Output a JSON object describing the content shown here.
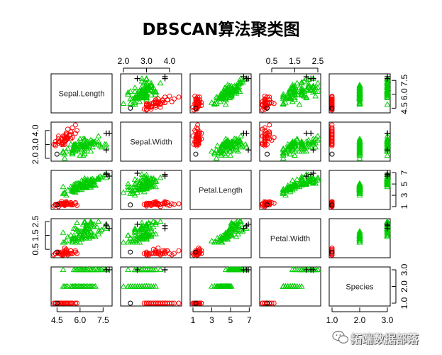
{
  "chart_data": {
    "type": "scatter",
    "title": "DBSCAN算法聚类图",
    "variables": [
      "Sepal.Length",
      "Sepal.Width",
      "Petal.Length",
      "Petal.Width",
      "Species"
    ],
    "ranges": [
      [
        4.3,
        7.9
      ],
      [
        2.0,
        4.4
      ],
      [
        1.0,
        6.9
      ],
      [
        0.1,
        2.5
      ],
      [
        1.0,
        3.0
      ]
    ],
    "ticks": [
      [
        "4.5",
        "6.0",
        "7.5"
      ],
      [
        "2.0",
        "3.0",
        "4.0"
      ],
      [
        "1",
        "3",
        "5",
        "7"
      ],
      [
        "0.5",
        "1.5",
        "2.5"
      ],
      [
        "1.0",
        "2.0",
        "3.0"
      ]
    ],
    "cluster_colors": {
      "noise": "#000000",
      "cluster1": "#ff0000",
      "cluster2": "#00cd00"
    },
    "points": {
      "cluster1": [
        [
          5.1,
          3.5,
          1.4,
          0.2,
          1
        ],
        [
          4.9,
          3.0,
          1.4,
          0.2,
          1
        ],
        [
          4.7,
          3.2,
          1.3,
          0.2,
          1
        ],
        [
          4.6,
          3.1,
          1.5,
          0.2,
          1
        ],
        [
          5.0,
          3.6,
          1.4,
          0.2,
          1
        ],
        [
          5.4,
          3.9,
          1.7,
          0.4,
          1
        ],
        [
          4.6,
          3.4,
          1.4,
          0.3,
          1
        ],
        [
          5.0,
          3.4,
          1.5,
          0.2,
          1
        ],
        [
          4.4,
          2.9,
          1.4,
          0.2,
          1
        ],
        [
          4.9,
          3.1,
          1.5,
          0.1,
          1
        ],
        [
          5.4,
          3.7,
          1.5,
          0.2,
          1
        ],
        [
          4.8,
          3.4,
          1.6,
          0.2,
          1
        ],
        [
          4.8,
          3.0,
          1.4,
          0.1,
          1
        ],
        [
          4.3,
          3.0,
          1.1,
          0.1,
          1
        ],
        [
          5.8,
          4.0,
          1.2,
          0.2,
          1
        ],
        [
          5.7,
          4.4,
          1.5,
          0.4,
          1
        ],
        [
          5.4,
          3.9,
          1.3,
          0.4,
          1
        ],
        [
          5.1,
          3.5,
          1.4,
          0.3,
          1
        ],
        [
          5.7,
          3.8,
          1.7,
          0.3,
          1
        ],
        [
          5.1,
          3.8,
          1.5,
          0.3,
          1
        ],
        [
          5.4,
          3.4,
          1.7,
          0.2,
          1
        ],
        [
          5.1,
          3.7,
          1.5,
          0.4,
          1
        ],
        [
          4.6,
          3.6,
          1.0,
          0.2,
          1
        ],
        [
          5.1,
          3.3,
          1.7,
          0.5,
          1
        ],
        [
          4.8,
          3.4,
          1.9,
          0.2,
          1
        ],
        [
          5.0,
          3.0,
          1.6,
          0.2,
          1
        ],
        [
          5.0,
          3.4,
          1.6,
          0.4,
          1
        ],
        [
          5.2,
          3.5,
          1.5,
          0.2,
          1
        ],
        [
          5.2,
          3.4,
          1.4,
          0.2,
          1
        ],
        [
          4.7,
          3.2,
          1.6,
          0.2,
          1
        ],
        [
          4.8,
          3.1,
          1.6,
          0.2,
          1
        ],
        [
          5.4,
          3.4,
          1.5,
          0.4,
          1
        ],
        [
          5.2,
          4.1,
          1.5,
          0.1,
          1
        ],
        [
          5.5,
          4.2,
          1.4,
          0.2,
          1
        ],
        [
          4.9,
          3.1,
          1.5,
          0.2,
          1
        ],
        [
          5.0,
          3.2,
          1.2,
          0.2,
          1
        ],
        [
          5.5,
          3.5,
          1.3,
          0.2,
          1
        ],
        [
          4.9,
          3.6,
          1.4,
          0.1,
          1
        ],
        [
          4.4,
          3.0,
          1.3,
          0.2,
          1
        ],
        [
          5.1,
          3.4,
          1.5,
          0.2,
          1
        ],
        [
          5.0,
          3.5,
          1.3,
          0.3,
          1
        ],
        [
          4.4,
          3.2,
          1.3,
          0.2,
          1
        ],
        [
          5.0,
          3.5,
          1.6,
          0.6,
          1
        ],
        [
          5.1,
          3.8,
          1.9,
          0.4,
          1
        ],
        [
          4.8,
          3.0,
          1.4,
          0.3,
          1
        ],
        [
          5.1,
          3.8,
          1.6,
          0.2,
          1
        ],
        [
          4.6,
          3.2,
          1.4,
          0.2,
          1
        ],
        [
          5.3,
          3.7,
          1.5,
          0.2,
          1
        ],
        [
          5.0,
          3.3,
          1.4,
          0.2,
          1
        ]
      ],
      "cluster2": [
        [
          7.0,
          3.2,
          4.7,
          1.4,
          2
        ],
        [
          6.4,
          3.2,
          4.5,
          1.5,
          2
        ],
        [
          6.9,
          3.1,
          4.9,
          1.5,
          2
        ],
        [
          5.5,
          2.3,
          4.0,
          1.3,
          2
        ],
        [
          6.5,
          2.8,
          4.6,
          1.5,
          2
        ],
        [
          5.7,
          2.8,
          4.5,
          1.3,
          2
        ],
        [
          6.3,
          3.3,
          4.7,
          1.6,
          2
        ],
        [
          4.9,
          2.4,
          3.3,
          1.0,
          2
        ],
        [
          6.6,
          2.9,
          4.6,
          1.3,
          2
        ],
        [
          5.2,
          2.7,
          3.9,
          1.4,
          2
        ],
        [
          5.0,
          2.0,
          3.5,
          1.0,
          2
        ],
        [
          5.9,
          3.0,
          4.2,
          1.5,
          2
        ],
        [
          6.0,
          2.2,
          4.0,
          1.0,
          2
        ],
        [
          6.1,
          2.9,
          4.7,
          1.4,
          2
        ],
        [
          5.6,
          2.9,
          3.6,
          1.3,
          2
        ],
        [
          6.7,
          3.1,
          4.4,
          1.4,
          2
        ],
        [
          5.6,
          3.0,
          4.5,
          1.5,
          2
        ],
        [
          5.8,
          2.7,
          4.1,
          1.0,
          2
        ],
        [
          6.2,
          2.2,
          4.5,
          1.5,
          2
        ],
        [
          5.6,
          2.5,
          3.9,
          1.1,
          2
        ],
        [
          5.9,
          3.2,
          4.8,
          1.8,
          2
        ],
        [
          6.1,
          2.8,
          4.0,
          1.3,
          2
        ],
        [
          6.3,
          2.5,
          4.9,
          1.5,
          2
        ],
        [
          6.1,
          2.8,
          4.7,
          1.2,
          2
        ],
        [
          6.4,
          2.9,
          4.3,
          1.3,
          2
        ],
        [
          6.6,
          3.0,
          4.4,
          1.4,
          2
        ],
        [
          6.8,
          2.8,
          4.8,
          1.4,
          2
        ],
        [
          6.7,
          3.0,
          5.0,
          1.7,
          2
        ],
        [
          6.0,
          2.9,
          4.5,
          1.5,
          2
        ],
        [
          5.7,
          2.6,
          3.5,
          1.0,
          2
        ],
        [
          5.5,
          2.4,
          3.8,
          1.1,
          2
        ],
        [
          5.5,
          2.4,
          3.7,
          1.0,
          2
        ],
        [
          5.8,
          2.7,
          3.9,
          1.2,
          2
        ],
        [
          6.0,
          2.7,
          5.1,
          1.6,
          2
        ],
        [
          5.4,
          3.0,
          4.5,
          1.5,
          2
        ],
        [
          6.0,
          3.4,
          4.5,
          1.6,
          2
        ],
        [
          6.7,
          3.1,
          4.7,
          1.5,
          2
        ],
        [
          6.3,
          2.3,
          4.4,
          1.3,
          2
        ],
        [
          5.6,
          3.0,
          4.1,
          1.3,
          2
        ],
        [
          5.5,
          2.5,
          4.0,
          1.3,
          2
        ],
        [
          5.5,
          2.6,
          4.4,
          1.2,
          2
        ],
        [
          6.1,
          3.0,
          4.6,
          1.4,
          2
        ],
        [
          5.8,
          2.6,
          4.0,
          1.2,
          2
        ],
        [
          5.0,
          2.3,
          3.3,
          1.0,
          2
        ],
        [
          5.6,
          2.7,
          4.2,
          1.3,
          2
        ],
        [
          5.7,
          3.0,
          4.2,
          1.2,
          2
        ],
        [
          5.7,
          2.9,
          4.2,
          1.3,
          2
        ],
        [
          6.2,
          2.9,
          4.3,
          1.3,
          2
        ],
        [
          5.1,
          2.5,
          3.0,
          1.1,
          2
        ],
        [
          5.7,
          2.8,
          4.1,
          1.3,
          2
        ],
        [
          6.3,
          3.3,
          6.0,
          2.5,
          3
        ],
        [
          5.8,
          2.7,
          5.1,
          1.9,
          3
        ],
        [
          7.1,
          3.0,
          5.9,
          2.1,
          3
        ],
        [
          6.3,
          2.9,
          5.6,
          1.8,
          3
        ],
        [
          6.5,
          3.0,
          5.8,
          2.2,
          3
        ],
        [
          7.6,
          3.0,
          6.6,
          2.1,
          3
        ],
        [
          4.9,
          2.5,
          4.5,
          1.7,
          3
        ],
        [
          7.3,
          2.9,
          6.3,
          1.8,
          3
        ],
        [
          6.7,
          2.5,
          5.8,
          1.8,
          3
        ],
        [
          7.2,
          3.6,
          6.1,
          2.5,
          3
        ],
        [
          6.5,
          3.2,
          5.1,
          2.0,
          3
        ],
        [
          6.4,
          2.7,
          5.3,
          1.9,
          3
        ],
        [
          6.8,
          3.0,
          5.5,
          2.1,
          3
        ],
        [
          5.7,
          2.5,
          5.0,
          2.0,
          3
        ],
        [
          5.8,
          2.8,
          5.1,
          2.4,
          3
        ],
        [
          6.4,
          3.2,
          5.3,
          2.3,
          3
        ],
        [
          6.5,
          3.0,
          5.5,
          1.8,
          3
        ],
        [
          6.0,
          2.2,
          5.0,
          1.5,
          3
        ],
        [
          6.9,
          3.2,
          5.7,
          2.3,
          3
        ],
        [
          5.6,
          2.8,
          4.9,
          2.0,
          3
        ],
        [
          7.7,
          2.8,
          6.7,
          2.0,
          3
        ],
        [
          6.3,
          2.7,
          4.9,
          1.8,
          3
        ],
        [
          6.7,
          3.3,
          5.7,
          2.1,
          3
        ],
        [
          7.2,
          3.2,
          6.0,
          1.8,
          3
        ],
        [
          6.2,
          2.8,
          4.8,
          1.8,
          3
        ],
        [
          6.1,
          3.0,
          4.9,
          1.8,
          3
        ],
        [
          6.4,
          2.8,
          5.6,
          2.1,
          3
        ],
        [
          7.2,
          3.0,
          5.8,
          1.6,
          3
        ],
        [
          7.4,
          2.8,
          6.1,
          1.9,
          3
        ],
        [
          6.4,
          2.8,
          5.6,
          2.2,
          3
        ],
        [
          6.3,
          2.8,
          5.1,
          1.5,
          3
        ],
        [
          6.1,
          2.6,
          5.6,
          1.4,
          3
        ],
        [
          7.7,
          3.0,
          6.1,
          2.3,
          3
        ],
        [
          6.3,
          3.4,
          5.6,
          2.4,
          3
        ],
        [
          6.4,
          3.1,
          5.5,
          1.8,
          3
        ],
        [
          6.0,
          3.0,
          4.8,
          1.8,
          3
        ],
        [
          6.9,
          3.1,
          5.4,
          2.1,
          3
        ],
        [
          6.7,
          3.1,
          5.6,
          2.4,
          3
        ],
        [
          6.9,
          3.1,
          5.1,
          2.3,
          3
        ],
        [
          6.8,
          3.2,
          5.9,
          2.3,
          3
        ],
        [
          6.7,
          3.3,
          5.7,
          2.5,
          3
        ],
        [
          6.7,
          3.0,
          5.2,
          2.3,
          3
        ],
        [
          6.3,
          2.5,
          5.0,
          1.9,
          3
        ],
        [
          6.5,
          3.0,
          5.2,
          2.0,
          3
        ],
        [
          6.2,
          3.4,
          5.4,
          2.3,
          3
        ],
        [
          5.9,
          3.0,
          5.1,
          1.8,
          3
        ],
        [
          5.8,
          2.7,
          5.1,
          1.9,
          3
        ]
      ],
      "noise": [
        [
          4.5,
          2.3,
          1.3,
          0.3,
          1
        ],
        [
          7.9,
          3.8,
          6.4,
          2.0,
          3
        ],
        [
          7.7,
          3.8,
          6.7,
          2.2,
          3
        ],
        [
          7.7,
          2.6,
          6.9,
          2.3,
          3
        ]
      ]
    }
  },
  "watermark": {
    "text": "拓端数据部落"
  }
}
